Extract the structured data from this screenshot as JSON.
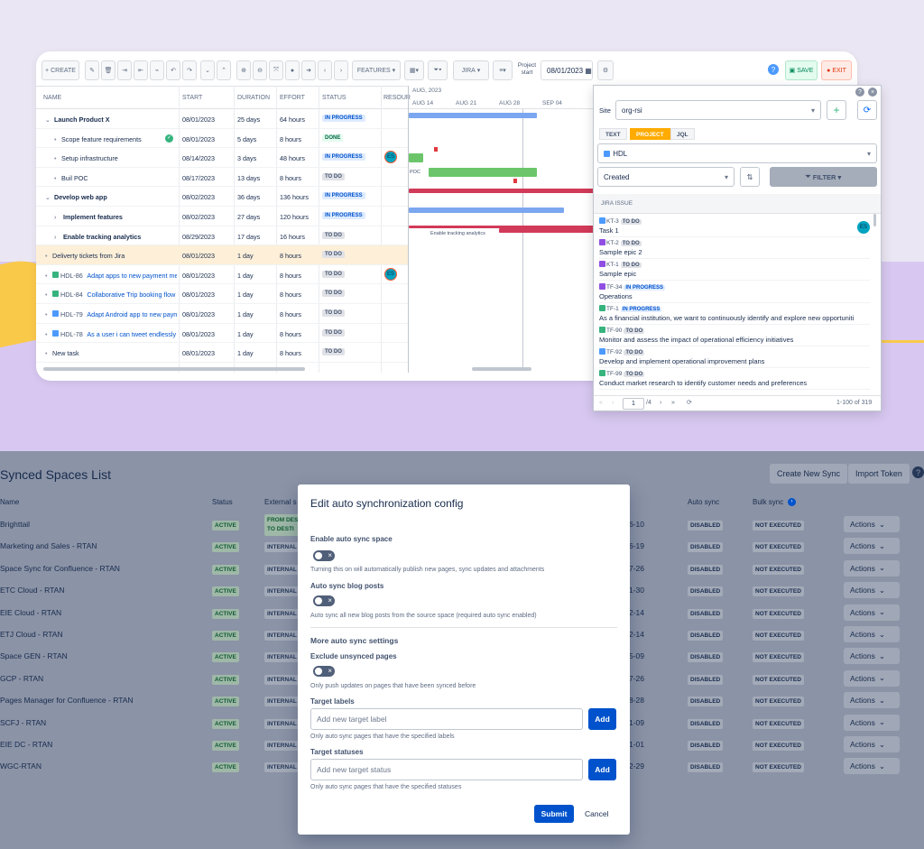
{
  "gantt": {
    "toolbar": {
      "create": "+ CREATE",
      "features": "FEATURES",
      "jira": "JIRA",
      "project_start": "Project start",
      "date": "08/01/2023",
      "save": "SAVE",
      "exit": "EXIT"
    },
    "columns": {
      "name": "NAME",
      "start": "START",
      "duration": "DURATION",
      "effort": "EFFORT",
      "status": "STATUS",
      "resource": "RESOUR"
    },
    "timeline": {
      "month": "AUG, 2023",
      "weeks": [
        "AUG 14",
        "AUG 21",
        "AUG 28",
        "SEP 04"
      ],
      "poc_label": "POC",
      "analytics_label": "Enable tracking analytics"
    },
    "rows": [
      {
        "name": "Launch Product X",
        "start": "08/01/2023",
        "duration": "25 days",
        "effort": "64 hours",
        "status": "IN PROGRESS"
      },
      {
        "name": "Scope feature requirements",
        "start": "08/01/2023",
        "duration": "5 days",
        "effort": "8 hours",
        "status": "DONE"
      },
      {
        "name": "Setup infrastructure",
        "start": "08/14/2023",
        "duration": "3 days",
        "effort": "48 hours",
        "status": "IN PROGRESS",
        "avatar": "ES"
      },
      {
        "name": "Buil POC",
        "start": "08/17/2023",
        "duration": "13 days",
        "effort": "8 hours",
        "status": "TO DO"
      },
      {
        "name": "Develop web app",
        "start": "08/02/2023",
        "duration": "36 days",
        "effort": "136 hours",
        "status": "IN PROGRESS"
      },
      {
        "name": "Implement features",
        "start": "08/02/2023",
        "duration": "27 days",
        "effort": "120 hours",
        "status": "IN PROGRESS"
      },
      {
        "name": "Enable tracking analytics",
        "start": "08/29/2023",
        "duration": "17 days",
        "effort": "16 hours",
        "status": "TO DO"
      },
      {
        "name": "Deliverty tickets from Jira",
        "start": "08/01/2023",
        "duration": "1 day",
        "effort": "8 hours",
        "status": "TO DO"
      },
      {
        "key": "HDL-86",
        "name": "Adapt apps to new payment met",
        "start": "08/01/2023",
        "duration": "1 day",
        "effort": "8 hours",
        "status": "TO DO",
        "avatar": "ES"
      },
      {
        "key": "HDL-84",
        "name": "Collaborative Trip booking flow",
        "start": "08/01/2023",
        "duration": "1 day",
        "effort": "8 hours",
        "status": "TO DO"
      },
      {
        "key": "HDL-79",
        "name": "Adapt Android app to new payme",
        "start": "08/01/2023",
        "duration": "1 day",
        "effort": "8 hours",
        "status": "TO DO"
      },
      {
        "key": "HDL-78",
        "name": "As a user i can tweet endlessly a",
        "start": "08/01/2023",
        "duration": "1 day",
        "effort": "8 hours",
        "status": "TO DO"
      },
      {
        "name": "New task",
        "start": "08/01/2023",
        "duration": "1 day",
        "effort": "8 hours",
        "status": "TO DO"
      }
    ]
  },
  "jira_panel": {
    "site_label": "Site",
    "site_value": "org-rsi",
    "tabs": [
      "TEXT",
      "PROJECT",
      "JQL"
    ],
    "project": "HDL",
    "sort": "Created",
    "filter": "FILTER",
    "column": "JIRA ISSUE",
    "issues": [
      {
        "key": "KT-3",
        "status": "TO DO",
        "summary": "Task 1",
        "avatar": "ES"
      },
      {
        "key": "KT-2",
        "status": "TO DO",
        "summary": "Sample epic 2"
      },
      {
        "key": "KT-1",
        "status": "TO DO",
        "summary": "Sample epic"
      },
      {
        "key": "TF-34",
        "status": "IN PROGRESS",
        "summary": "Operations"
      },
      {
        "key": "TF-1",
        "status": "IN PROGRESS",
        "summary": "As a financial institution, we want to continuously identify and explore new opportuniti"
      },
      {
        "key": "TF-90",
        "status": "TO DO",
        "summary": "Monitor and assess the impact of operational efficiency initiatives"
      },
      {
        "key": "TF-92",
        "status": "TO DO",
        "summary": "Develop and implement operational improvement plans"
      },
      {
        "key": "TF-99",
        "status": "TO DO",
        "summary": "Conduct market research to identify customer needs and preferences"
      }
    ],
    "page": "1",
    "pages": "/4",
    "range": "1-100 of 319"
  },
  "synced": {
    "title": "Synced Spaces List",
    "create_btn": "Create New Sync",
    "import_btn": "Import Token",
    "headers": {
      "name": "Name",
      "status": "Status",
      "external": "External s",
      "auto_sync": "Auto sync",
      "bulk_sync": "Bulk sync"
    },
    "rows": [
      {
        "name": "Brighttail",
        "status": "ACTIVE",
        "ext": "FROM DES",
        "date": "6-10",
        "auto": "DISABLED",
        "bulk": "NOT EXECUTED"
      },
      {
        "name": "Marketing and Sales - RTAN",
        "status": "ACTIVE",
        "ext": "INTERNAL",
        "date": "6-19",
        "auto": "DISABLED",
        "bulk": "NOT EXECUTED"
      },
      {
        "name": "Space Sync for Confluence - RTAN",
        "status": "ACTIVE",
        "ext": "INTERNAL",
        "date": "7-26",
        "auto": "DISABLED",
        "bulk": "NOT EXECUTED"
      },
      {
        "name": "ETC Cloud - RTAN",
        "status": "ACTIVE",
        "ext": "INTERNAL",
        "date": "1-30",
        "auto": "DISABLED",
        "bulk": "NOT EXECUTED"
      },
      {
        "name": "EIE Cloud - RTAN",
        "status": "ACTIVE",
        "ext": "INTERNAL",
        "date": "2-14",
        "auto": "DISABLED",
        "bulk": "NOT EXECUTED"
      },
      {
        "name": "ETJ Cloud - RTAN",
        "status": "ACTIVE",
        "ext": "INTERNAL",
        "date": "2-14",
        "auto": "DISABLED",
        "bulk": "NOT EXECUTED"
      },
      {
        "name": "Space GEN - RTAN",
        "status": "ACTIVE",
        "ext": "INTERNAL",
        "date": "5-09",
        "auto": "DISABLED",
        "bulk": "NOT EXECUTED"
      },
      {
        "name": "GCP - RTAN",
        "status": "ACTIVE",
        "ext": "INTERNAL",
        "date": "7-26",
        "auto": "DISABLED",
        "bulk": "NOT EXECUTED"
      },
      {
        "name": "Pages Manager for Confluence - RTAN",
        "status": "ACTIVE",
        "ext": "INTERNAL",
        "date": "8-28",
        "auto": "DISABLED",
        "bulk": "NOT EXECUTED"
      },
      {
        "name": "SCFJ - RTAN",
        "status": "ACTIVE",
        "ext": "INTERNAL",
        "date": "1-09",
        "auto": "DISABLED",
        "bulk": "NOT EXECUTED"
      },
      {
        "name": "EIE DC - RTAN",
        "status": "ACTIVE",
        "ext": "INTERNAL",
        "date": "1-01",
        "auto": "DISABLED",
        "bulk": "NOT EXECUTED"
      },
      {
        "name": "WGC-RTAN",
        "status": "ACTIVE",
        "ext": "INTERNAL",
        "date": "2-29",
        "auto": "DISABLED",
        "bulk": "NOT EXECUTED"
      }
    ],
    "ext_row1_line2": "TO DESTI",
    "actions_label": "Actions"
  },
  "modal": {
    "title": "Edit auto synchronization config",
    "enable_label": "Enable auto sync space",
    "enable_help": "Turning this on will automatically publish new pages, sync updates and attachments",
    "blog_label": "Auto sync blog posts",
    "blog_help": "Auto sync all new blog posts from the source space (required auto sync enabled)",
    "more_label": "More auto sync settings",
    "exclude_label": "Exclude unsynced pages",
    "exclude_help": "Only push updates on pages that have been synced before",
    "target_labels": "Target labels",
    "target_labels_placeholder": "Add new target label",
    "target_labels_help": "Only auto sync pages that have the specified labels",
    "target_statuses": "Target statuses",
    "target_statuses_placeholder": "Add new target status",
    "target_statuses_help": "Only auto sync pages that have the specified statuses",
    "add": "Add",
    "submit": "Submit",
    "cancel": "Cancel"
  }
}
